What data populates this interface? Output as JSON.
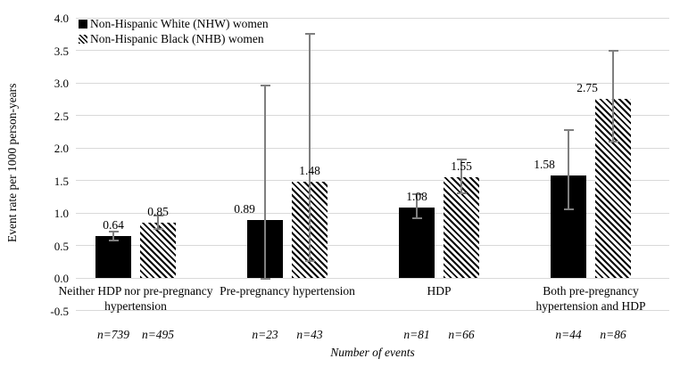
{
  "chart_data": {
    "type": "bar",
    "title": "",
    "ylabel": "Event rate per 1000 person-years",
    "xlabel": "Number of events",
    "ylim": [
      -0.5,
      4.0
    ],
    "ytick_step": 0.5,
    "grid": true,
    "legend_position": "top-left-inside",
    "categories": [
      "Neither HDP nor pre-pregnancy hypertension",
      "Pre-pregnancy hypertension",
      "HDP",
      "Both pre-pregnancy hypertension and HDP"
    ],
    "series": [
      {
        "name": "Non-Hispanic White (NHW) women",
        "pattern": "solid-black",
        "values": [
          0.64,
          0.89,
          1.08,
          1.58
        ],
        "ci_low": [
          0.58,
          -0.02,
          0.92,
          1.05
        ],
        "ci_high": [
          0.71,
          2.96,
          1.29,
          2.27
        ],
        "events_n": [
          739,
          23,
          81,
          44
        ]
      },
      {
        "name": "Non-Hispanic Black (NHB) women",
        "pattern": "diagonal-hatch",
        "values": [
          0.85,
          1.48,
          1.55,
          2.75
        ],
        "ci_low": [
          0.76,
          0.26,
          1.3,
          2.1
        ],
        "ci_high": [
          0.96,
          3.76,
          1.82,
          3.5
        ],
        "events_n": [
          495,
          43,
          66,
          86
        ]
      }
    ],
    "n_label_prefix": "n=",
    "colors": {
      "bar": "#000000",
      "hatch_fg": "#000000",
      "hatch_bg": "#ffffff",
      "error_bar": "#7f7f7f",
      "gridline": "#d9d9d9",
      "text": "#000000"
    }
  }
}
